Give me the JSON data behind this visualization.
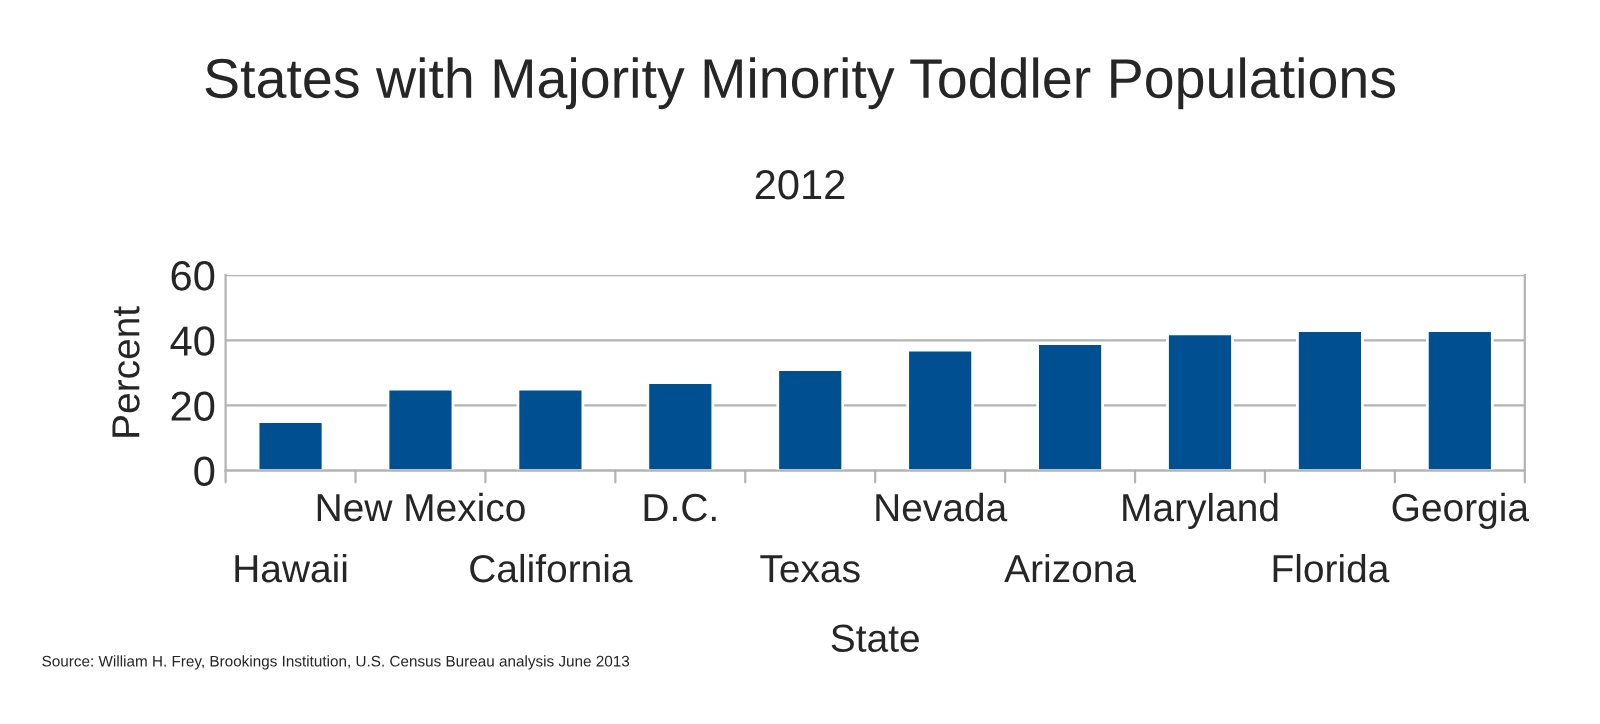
{
  "chart_data": {
    "type": "bar",
    "title": "States with Majority Minority Toddler Populations",
    "subtitle": "2012",
    "xlabel": "State",
    "ylabel": "Percent",
    "categories": [
      "Hawaii",
      "New Mexico",
      "California",
      "D.C.",
      "Texas",
      "Nevada",
      "Arizona",
      "Maryland",
      "Florida",
      "Georgia"
    ],
    "values": [
      15,
      25,
      25,
      27,
      31,
      37,
      39,
      42,
      43,
      43
    ],
    "color": "#004f91",
    "ylim": [
      0,
      60
    ],
    "yticks": [
      0,
      20,
      40,
      60
    ],
    "grid": "y",
    "legend": false,
    "annotations": [
      "Source: William H. Frey, Brookings Institution, U.S. Census Bureau analysis June 2013"
    ]
  }
}
